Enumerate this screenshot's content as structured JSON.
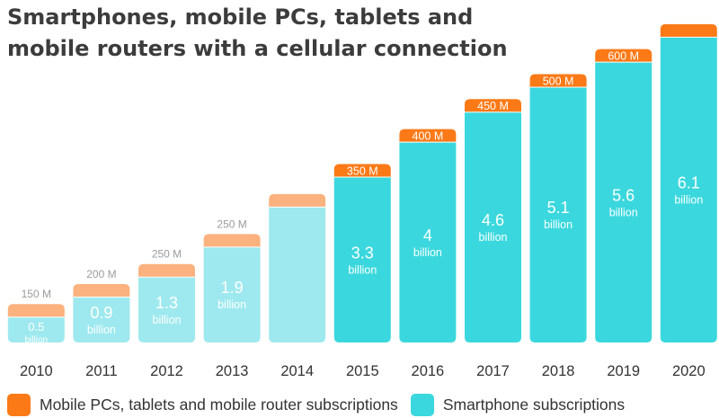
{
  "chart_data": {
    "type": "bar",
    "stacked": true,
    "title": [
      "Smartphones, mobile PCs, tablets and",
      "mobile routers with a cellular connection"
    ],
    "categories": [
      "2010",
      "2011",
      "2012",
      "2013",
      "2014",
      "2015",
      "2016",
      "2017",
      "2018",
      "2019",
      "2020"
    ],
    "forecast_from": "2015",
    "series": [
      {
        "name": "Smartphone subscriptions",
        "unit": "billion",
        "values": [
          0.5,
          0.9,
          1.3,
          1.9,
          2.7,
          3.3,
          4,
          4.6,
          5.1,
          5.6,
          6.1
        ],
        "labels": [
          "0.5",
          "0.9",
          "1.3",
          "1.9",
          "",
          "3.3",
          "4",
          "4.6",
          "5.1",
          "5.6",
          "6.1"
        ],
        "unit_label": "billion"
      },
      {
        "name": "Mobile PCs, tablets and mobile router subscriptions",
        "unit": "million",
        "values": [
          150,
          200,
          250,
          250,
          250,
          350,
          400,
          450,
          500,
          600,
          650
        ],
        "labels": [
          "150 M",
          "200 M",
          "250 M",
          "250 M",
          "",
          "350 M",
          "400 M",
          "450 M",
          "500 M",
          "600 M",
          ""
        ]
      }
    ],
    "legend_position": "bottom-left",
    "grid": false
  },
  "colors": {
    "smartphone_past": "#9ee9ef",
    "smartphone_forecast": "#3ad8de",
    "mobile_pc_past": "#fbb27f",
    "mobile_pc_forecast": "#fb7a17",
    "label_past_dark": "#9b9b9b",
    "label_on_bar": "#ffffff",
    "axis_text": "#333333"
  },
  "legend": {
    "mobile_pc": "Mobile PCs, tablets and mobile router subscriptions",
    "smartphone": "Smartphone subscriptions"
  }
}
